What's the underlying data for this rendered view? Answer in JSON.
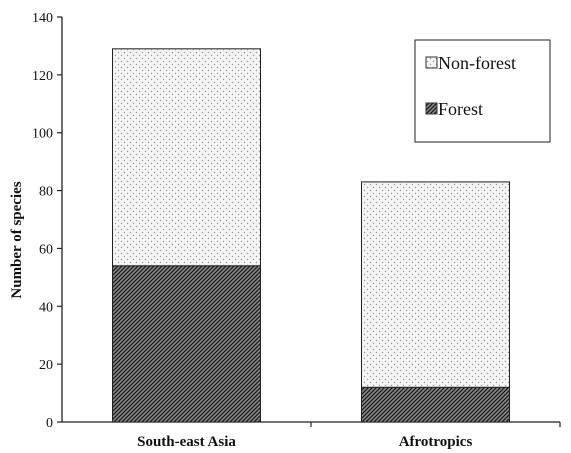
{
  "chart_data": {
    "type": "bar",
    "stacked": true,
    "categories": [
      "South-east Asia",
      "Afrotropics"
    ],
    "series": [
      {
        "name": "Forest",
        "values": [
          54,
          12
        ],
        "pattern": "diagonal-hatch",
        "color": "#333333"
      },
      {
        "name": "Non-forest",
        "values": [
          75,
          71
        ],
        "pattern": "dots",
        "color": "#f2f2f2"
      }
    ],
    "ylabel": "Number of species",
    "xlabel": "",
    "ylim": [
      0,
      140
    ],
    "yticks": [
      0,
      20,
      40,
      60,
      80,
      100,
      120,
      140
    ],
    "grid": false,
    "legend": {
      "placement": "top-right",
      "order": [
        "Non-forest",
        "Forest"
      ]
    }
  }
}
